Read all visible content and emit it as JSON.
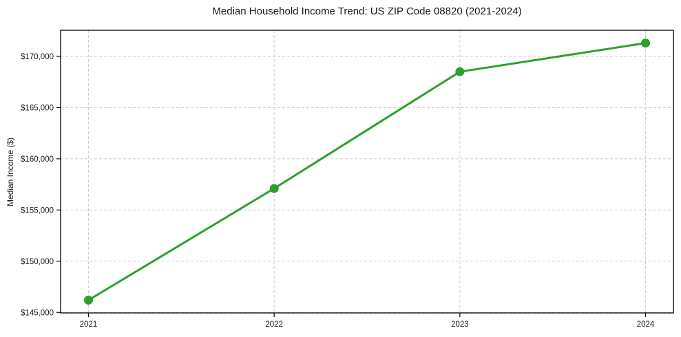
{
  "chart_data": {
    "type": "line",
    "title": "Median Household Income Trend: US ZIP Code 08820 (2021-2024)",
    "xlabel": "",
    "ylabel": "Median Income ($)",
    "x": [
      2021,
      2022,
      2023,
      2024
    ],
    "series": [
      {
        "name": "Median Household Income",
        "values": [
          146200,
          157100,
          168500,
          171300
        ]
      }
    ],
    "xlim": [
      2020.85,
      2024.15
    ],
    "ylim": [
      144950,
      172550
    ],
    "xticks": [
      2021,
      2022,
      2023,
      2024
    ],
    "xtick_labels": [
      "2021",
      "2022",
      "2023",
      "2024"
    ],
    "yticks": [
      145000,
      150000,
      155000,
      160000,
      165000,
      170000
    ],
    "ytick_labels": [
      "$145,000",
      "$150,000",
      "$155,000",
      "$160,000",
      "$165,000",
      "$170,000"
    ],
    "grid": true,
    "grid_style": "dashed",
    "grid_color": "#cccccc",
    "line_color": "#2ca02c",
    "marker": "circle",
    "axis_color": "#000000",
    "background": "#ffffff",
    "legend": null
  }
}
